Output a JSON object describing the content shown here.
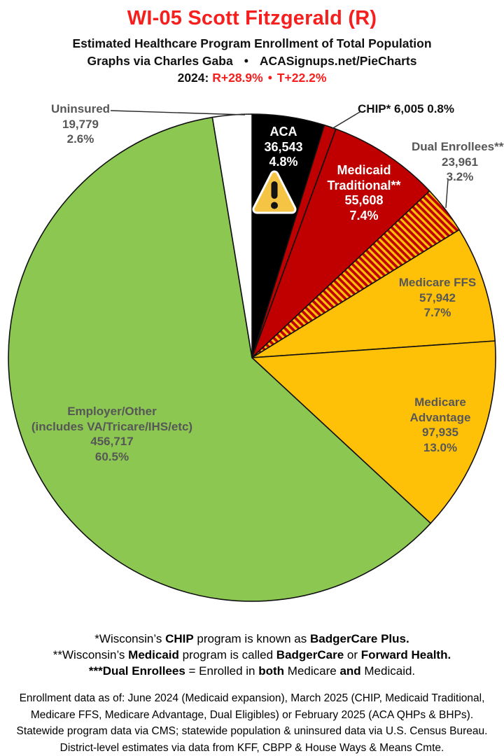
{
  "header": {
    "title": "WI-05 Scott Fitzgerald (R)",
    "title_color": "#F5201E",
    "subtitle": "Estimated Healthcare Program Enrollment of Total Population",
    "byline": "Graphs via Charles Gaba",
    "byline_separator": "•",
    "site": "ACASignups.net/PieCharts",
    "lean_year": "2024:",
    "lean_r": "R+28.9%",
    "lean_separator": "•",
    "lean_t": "T+22.2%",
    "lean_color": "#F5201E"
  },
  "chart_data": {
    "type": "pie",
    "title": "Estimated Healthcare Program Enrollment of Total Population",
    "district": "WI-05",
    "representative": "Scott Fitzgerald (R)",
    "start_angle_deg": 0,
    "direction": "clockwise",
    "stroke_color": "#111111",
    "slices": [
      {
        "id": "aca",
        "name": "ACA",
        "value": 36543,
        "value_label": "36,543",
        "pct": 4.8,
        "pct_label": "4.8%",
        "color": "#000000",
        "label_lines": [
          "ACA",
          "36,543",
          "4.8%"
        ],
        "label_color": "#ffffff",
        "icon": "warning-triangle-icon"
      },
      {
        "id": "chip",
        "name": "CHIP*",
        "value": 6005,
        "value_label": "6,005",
        "pct": 0.8,
        "pct_label": "0.8%",
        "color": "#C00000",
        "label_lines": [
          "CHIP* 6,005 0.8%"
        ],
        "label_color": "#111111"
      },
      {
        "id": "medicaid_traditional",
        "name": "Medicaid Traditional**",
        "value": 55608,
        "value_label": "55,608",
        "pct": 7.4,
        "pct_label": "7.4%",
        "color": "#C00000",
        "label_lines": [
          "Medicaid",
          "Traditional**",
          "55,608",
          "7.4%"
        ],
        "label_color": "#ffffff"
      },
      {
        "id": "dual_enrollees",
        "name": "Dual Enrollees***",
        "value": 23961,
        "value_label": "23,961",
        "pct": 3.2,
        "pct_label": "3.2%",
        "color": "hatch",
        "hatch": {
          "bg": "#C00000",
          "stripe": "#FFC008"
        },
        "label_lines": [
          "Dual Enrollees***",
          "23,961",
          "3.2%"
        ],
        "label_color": "#575757"
      },
      {
        "id": "medicare_ffs",
        "name": "Medicare FFS",
        "value": 57942,
        "value_label": "57,942",
        "pct": 7.7,
        "pct_label": "7.7%",
        "color": "#FFC008",
        "label_lines": [
          "Medicare FFS",
          "57,942",
          "7.7%"
        ],
        "label_color": "#575757"
      },
      {
        "id": "medicare_advantage",
        "name": "Medicare Advantage",
        "value": 97935,
        "value_label": "97,935",
        "pct": 13.0,
        "pct_label": "13.0%",
        "color": "#FFC008",
        "label_lines": [
          "Medicare",
          "Advantage",
          "97,935",
          "13.0%"
        ],
        "label_color": "#575757"
      },
      {
        "id": "employer_other",
        "name": "Employer/Other (includes VA/Tricare/IHS/etc)",
        "value": 456717,
        "value_label": "456,717",
        "pct": 60.5,
        "pct_label": "60.5%",
        "color": "#8BC751",
        "label_lines": [
          "Employer/Other",
          "(includes VA/Tricare/IHS/etc)",
          "456,717",
          "60.5%"
        ],
        "label_color": "#575757"
      },
      {
        "id": "uninsured",
        "name": "Uninsured",
        "value": 19779,
        "value_label": "19,779",
        "pct": 2.6,
        "pct_label": "2.6%",
        "color": "#FFFFFF",
        "label_lines": [
          "Uninsured",
          "19,779",
          "2.6%"
        ],
        "label_color": "#575757"
      }
    ]
  },
  "footnotes": [
    [
      {
        "t": "*Wisconsin’s ",
        "b": false
      },
      {
        "t": "CHIP",
        "b": true
      },
      {
        "t": " program is known as ",
        "b": false
      },
      {
        "t": "BadgerCare Plus",
        "b": true
      },
      {
        "t": ".",
        "b": true
      }
    ],
    [
      {
        "t": "**Wisconsin’s ",
        "b": false
      },
      {
        "t": "Medicaid",
        "b": true
      },
      {
        "t": " program is called ",
        "b": false
      },
      {
        "t": "BadgerCare",
        "b": true
      },
      {
        "t": " or ",
        "b": false
      },
      {
        "t": "Forward Health",
        "b": true
      },
      {
        "t": ".",
        "b": true
      }
    ],
    [
      {
        "t": "***Dual Enrollees",
        "b": true
      },
      {
        "t": " = Enrolled in ",
        "b": false
      },
      {
        "t": "both",
        "b": true
      },
      {
        "t": " Medicare ",
        "b": false
      },
      {
        "t": "and",
        "b": true
      },
      {
        "t": " Medicaid.",
        "b": false
      }
    ]
  ],
  "sources": [
    "Enrollment data as of: June 2024 (Medicaid expansion), March 2025 (CHIP, Medicaid Traditional,",
    "Medicare FFS, Medicare Advantage, Dual Eligibles) or February 2025 (ACA QHPs & BHPs).",
    "Statewide program data via CMS; statewide population & uninsured data via U.S. Census Bureau.",
    "District-level estimates via data from KFF, CBPP & House Ways & Means Cmte."
  ]
}
